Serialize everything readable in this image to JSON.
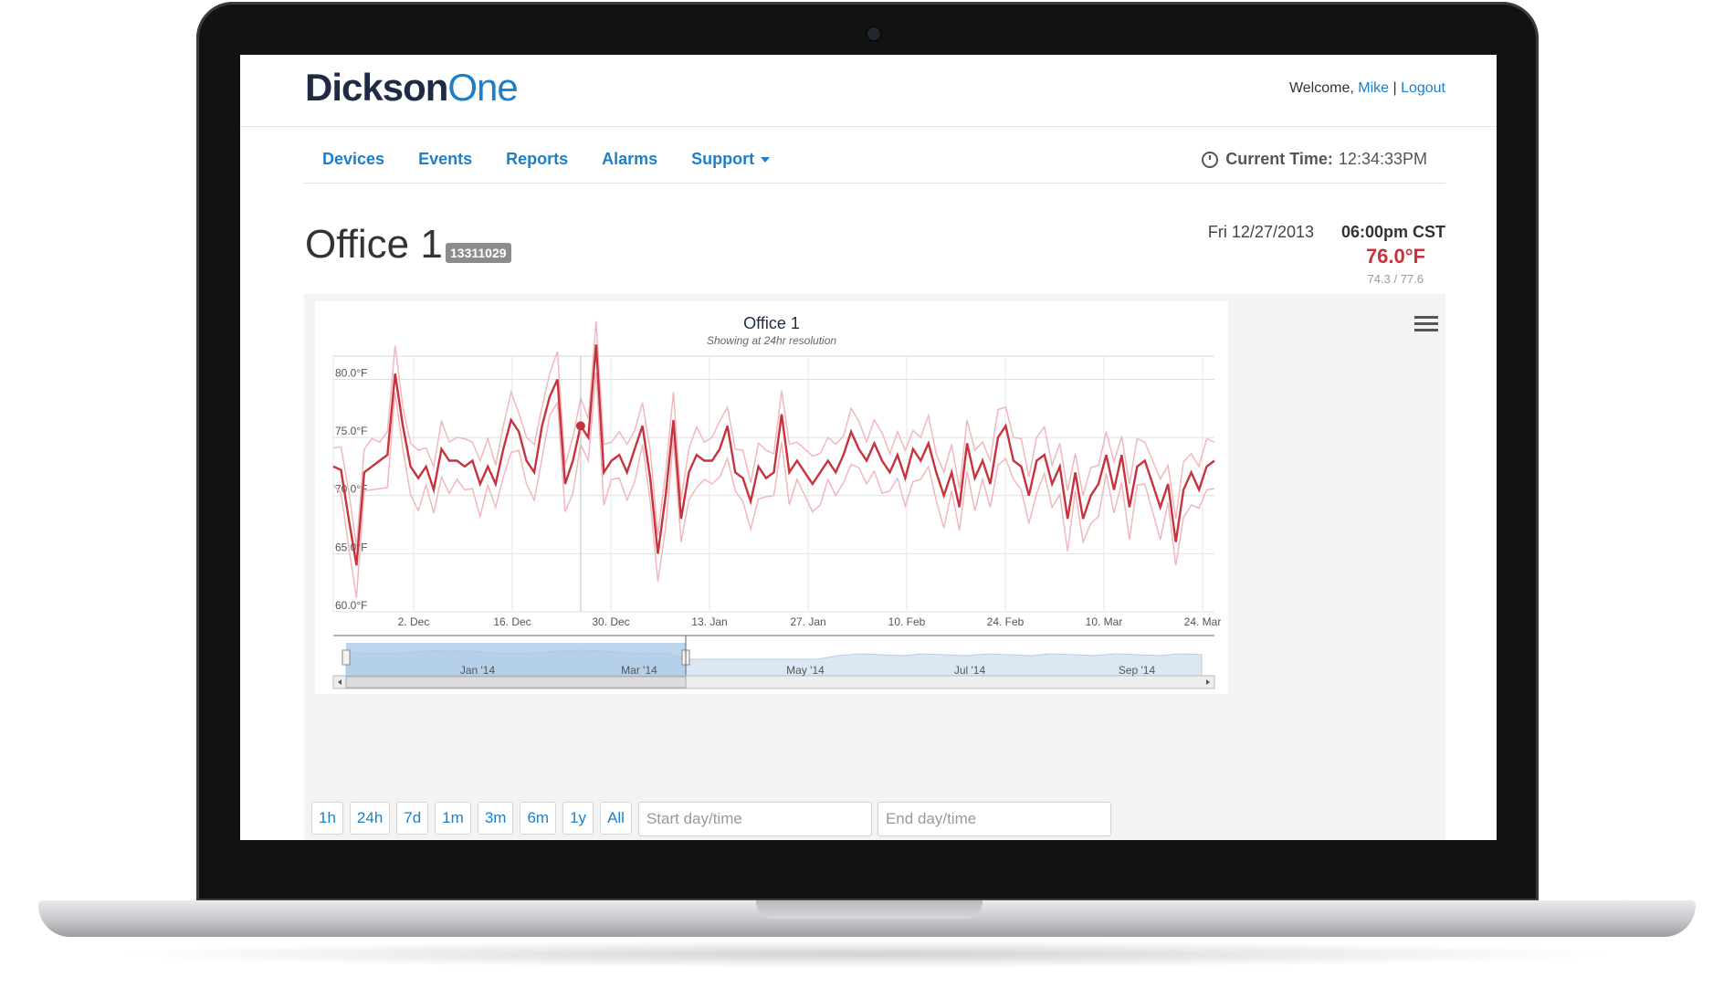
{
  "header": {
    "logo_part1": "Dickson",
    "logo_part2": "One",
    "welcome_text": "Welcome, ",
    "user_name": "Mike",
    "separator": " | ",
    "logout_label": "Logout"
  },
  "nav": {
    "items": [
      {
        "label": "Devices"
      },
      {
        "label": "Events"
      },
      {
        "label": "Reports"
      },
      {
        "label": "Alarms"
      },
      {
        "label": "Support"
      }
    ],
    "current_time_label": "Current Time:",
    "current_time_value": "12:34:33PM"
  },
  "device": {
    "name": "Office 1",
    "serial": "13311029",
    "reading_date": "Fri 12/27/2013",
    "reading_time": "06:00pm CST",
    "temperature": "76.0°F",
    "range": "74.3 / 77.6"
  },
  "chart_data": {
    "type": "line",
    "title": "Office 1",
    "subtitle": "Showing at 24hr resolution",
    "y_ticks": [
      "80.0°F",
      "75.0°F",
      "70.0°F",
      "65.0°F",
      "60.0°F"
    ],
    "ylim": [
      60,
      82
    ],
    "x_ticks": [
      "2. Dec",
      "16. Dec",
      "30. Dec",
      "13. Jan",
      "27. Jan",
      "10. Feb",
      "24. Feb",
      "10. Mar",
      "24. Mar"
    ],
    "series": [
      {
        "values": [
          72.5,
          72.2,
          68,
          64,
          72,
          72.5,
          73,
          73.5,
          80.5,
          76,
          72.5,
          71.5,
          72.5,
          70.5,
          74,
          73,
          73,
          72.5,
          73,
          71,
          72.5,
          71,
          74,
          76.5,
          75.5,
          73,
          72,
          76,
          78.5,
          80,
          71,
          73,
          76,
          75,
          83,
          72,
          73,
          73.5,
          72,
          74,
          76,
          71.5,
          65,
          70,
          76.5,
          68,
          72,
          73.5,
          73,
          73,
          74,
          76,
          72,
          71.5,
          69.5,
          72.5,
          71.5,
          72,
          77,
          72,
          73,
          72,
          71,
          72,
          73,
          72,
          73.5,
          75.5,
          74,
          73,
          74.5,
          73,
          72,
          73.5,
          71.5,
          74,
          73,
          74.5,
          72,
          70,
          72,
          69,
          74.5,
          71.5,
          73,
          71,
          75,
          76,
          73,
          72.5,
          70,
          73,
          73.5,
          71,
          72.5,
          68,
          72,
          68,
          70,
          71,
          73.5,
          70.5,
          73.5,
          69,
          72.5,
          73,
          71,
          69,
          71,
          66,
          70.5,
          72,
          70.5,
          72.5,
          73
        ],
        "color": "#c8323c"
      }
    ],
    "navigator_labels": [
      "Jan '14",
      "Mar '14",
      "May '14",
      "Jul '14",
      "Sep '14"
    ],
    "selected_range": [
      0,
      0.4
    ]
  },
  "range_buttons": [
    "1h",
    "24h",
    "7d",
    "1m",
    "3m",
    "6m",
    "1y",
    "All"
  ],
  "inputs": {
    "start_placeholder": "Start day/time",
    "end_placeholder": "End day/time"
  },
  "colors": {
    "brand_blue": "#1e7fc7",
    "brand_dark": "#1f2a44",
    "alert_red": "#c8323c"
  }
}
